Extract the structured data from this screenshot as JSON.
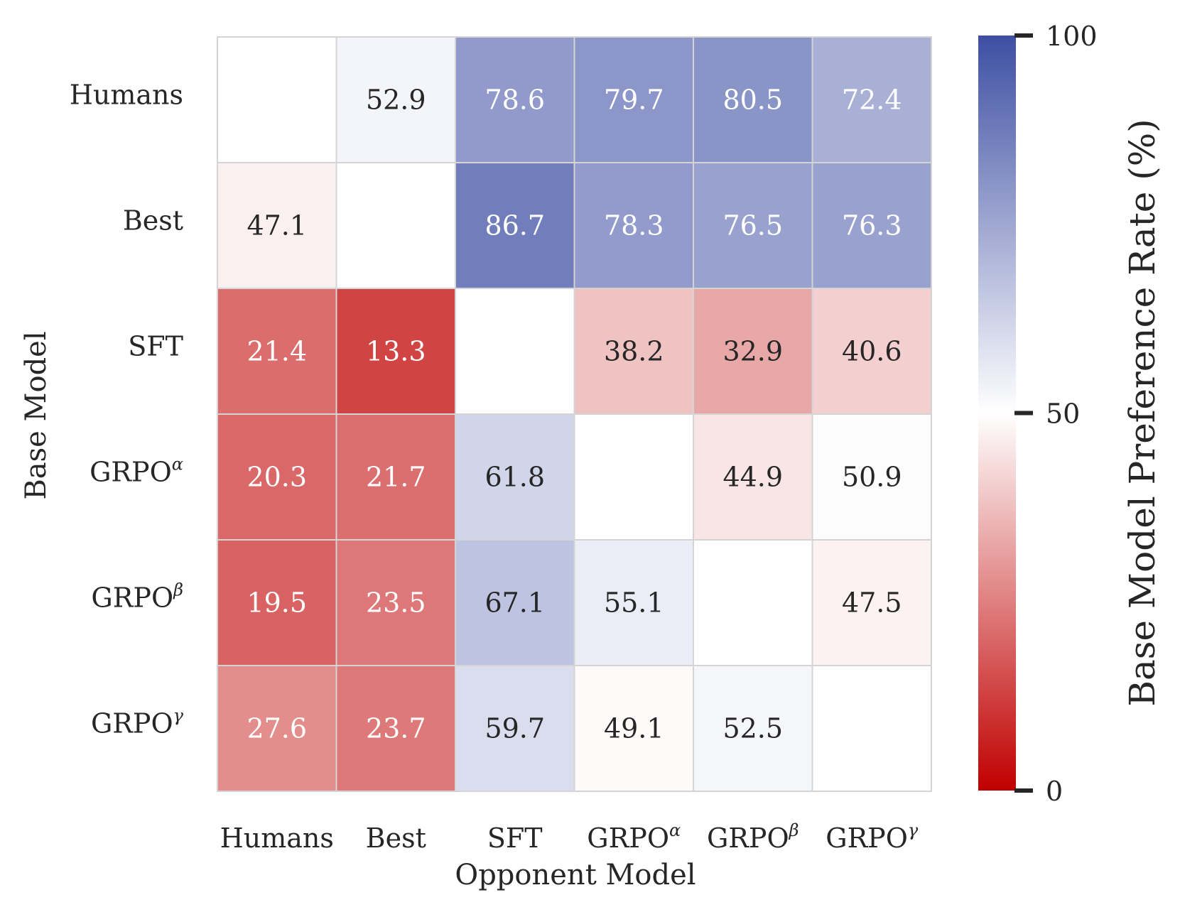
{
  "chart_data": {
    "type": "heatmap",
    "title": "",
    "xlabel": "Opponent Model",
    "ylabel": "Base Model",
    "x_categories": [
      {
        "base": "Humans",
        "sup": ""
      },
      {
        "base": "Best",
        "sup": ""
      },
      {
        "base": "SFT",
        "sup": ""
      },
      {
        "base": "GRPO",
        "sup": "α"
      },
      {
        "base": "GRPO",
        "sup": "β"
      },
      {
        "base": "GRPO",
        "sup": "γ"
      }
    ],
    "y_categories": [
      {
        "base": "Humans",
        "sup": ""
      },
      {
        "base": "Best",
        "sup": ""
      },
      {
        "base": "SFT",
        "sup": ""
      },
      {
        "base": "GRPO",
        "sup": "α"
      },
      {
        "base": "GRPO",
        "sup": "β"
      },
      {
        "base": "GRPO",
        "sup": "γ"
      }
    ],
    "values": [
      [
        null,
        52.9,
        78.6,
        79.7,
        80.5,
        72.4
      ],
      [
        47.1,
        null,
        86.7,
        78.3,
        76.5,
        76.3
      ],
      [
        21.4,
        13.3,
        null,
        38.2,
        32.9,
        40.6
      ],
      [
        20.3,
        21.7,
        61.8,
        null,
        44.9,
        50.9
      ],
      [
        19.5,
        23.5,
        67.1,
        55.1,
        null,
        47.5
      ],
      [
        27.6,
        23.7,
        59.7,
        49.1,
        52.5,
        null
      ]
    ],
    "colorbar": {
      "label": "Base Model Preference Rate (%)",
      "range": [
        0,
        100
      ],
      "ticks": [
        "0",
        "50",
        "100"
      ],
      "low_color": "#c00000",
      "mid_color": "#ffffff",
      "high_color": "#3e4fa3"
    },
    "grid_color": "#d4d4d4",
    "light_text_color": "#ffffff",
    "dark_text_color": "#262626"
  }
}
